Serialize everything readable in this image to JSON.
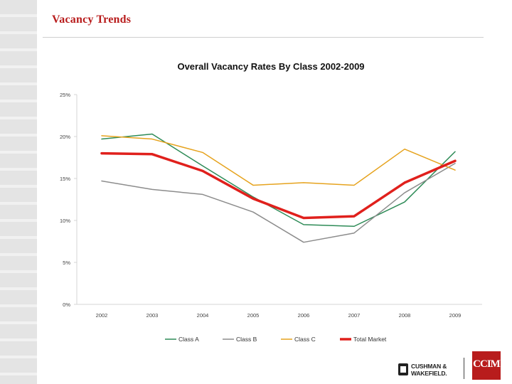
{
  "slide": {
    "title": "Vacancy Trends"
  },
  "chart_data": {
    "type": "line",
    "title": "Overall Vacancy Rates By Class 2002-2009",
    "xlabel": "",
    "ylabel": "",
    "categories": [
      "2002",
      "2003",
      "2004",
      "2005",
      "2006",
      "2007",
      "2008",
      "2009"
    ],
    "y_ticks": [
      "0%",
      "5%",
      "10%",
      "15%",
      "20%",
      "25%"
    ],
    "ylim": [
      0,
      25
    ],
    "grid": false,
    "legend_position": "bottom",
    "series": [
      {
        "name": "Class A",
        "color": "#2e8b57",
        "width": 1.5,
        "values": [
          19.7,
          20.3,
          16.5,
          12.8,
          9.5,
          9.3,
          12.2,
          18.2
        ]
      },
      {
        "name": "Class B",
        "color": "#8c8c8c",
        "width": 1.5,
        "values": [
          14.7,
          13.7,
          13.1,
          11.0,
          7.4,
          8.5,
          13.3,
          16.8
        ]
      },
      {
        "name": "Class C",
        "color": "#e6a31e",
        "width": 1.5,
        "values": [
          20.1,
          19.7,
          18.1,
          14.2,
          14.5,
          14.2,
          18.5,
          16.0
        ]
      },
      {
        "name": "Total Market",
        "color": "#e0201c",
        "width": 3.5,
        "values": [
          18.0,
          17.9,
          15.9,
          12.6,
          10.3,
          10.5,
          14.5,
          17.1
        ]
      }
    ]
  },
  "footer": {
    "cw_logo_text": "CUSHMAN &\nWAKEFIELD.",
    "ccim_logo_text": "CCIM"
  }
}
